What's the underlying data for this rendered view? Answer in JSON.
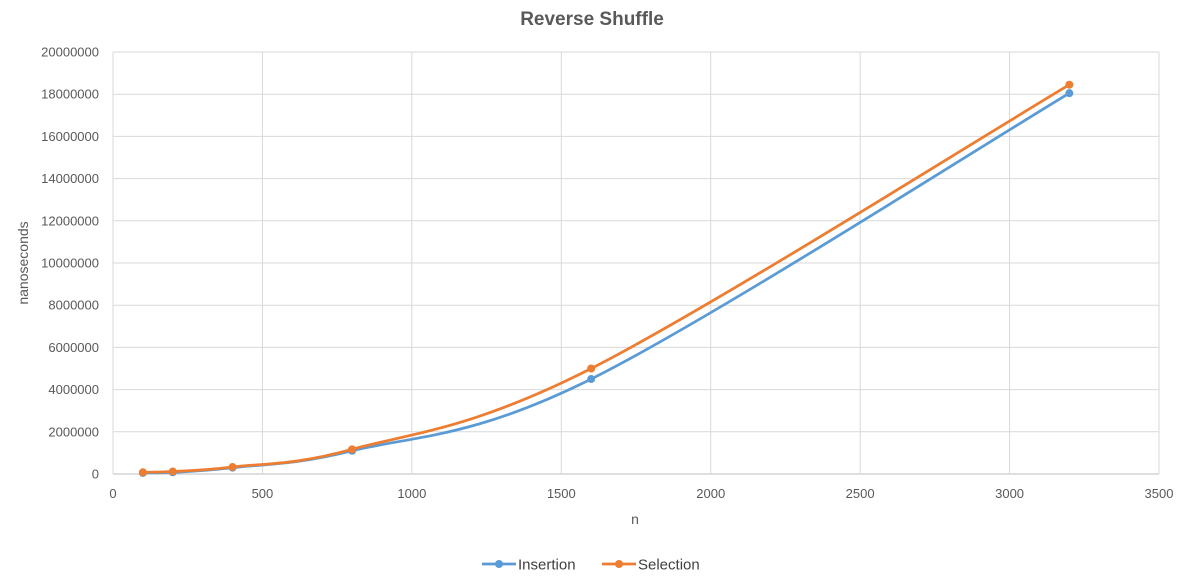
{
  "chart_data": {
    "type": "scatter",
    "title": "Reverse Shuffle",
    "xlabel": "n",
    "ylabel": "nanoseconds",
    "xlim": [
      0,
      3500
    ],
    "ylim": [
      0,
      20000000
    ],
    "x_ticks": [
      "0",
      "500",
      "1000",
      "1500",
      "2000",
      "2500",
      "3000",
      "3500"
    ],
    "y_ticks": [
      "0",
      "2000000",
      "4000000",
      "6000000",
      "8000000",
      "10000000",
      "12000000",
      "14000000",
      "16000000",
      "18000000",
      "20000000"
    ],
    "grid": true,
    "smooth_lines": true,
    "legend_position": "bottom",
    "series": [
      {
        "name": "Insertion",
        "color": "#5b9bd5",
        "points": [
          [
            100,
            50000
          ],
          [
            200,
            80000
          ],
          [
            400,
            300000
          ],
          [
            800,
            1100000
          ],
          [
            1600,
            4500000
          ],
          [
            3200,
            18050000
          ]
        ]
      },
      {
        "name": "Selection",
        "color": "#ed7d31",
        "points": [
          [
            100,
            80000
          ],
          [
            200,
            120000
          ],
          [
            400,
            330000
          ],
          [
            800,
            1170000
          ],
          [
            1600,
            5000000
          ],
          [
            3200,
            18450000
          ]
        ]
      }
    ]
  }
}
